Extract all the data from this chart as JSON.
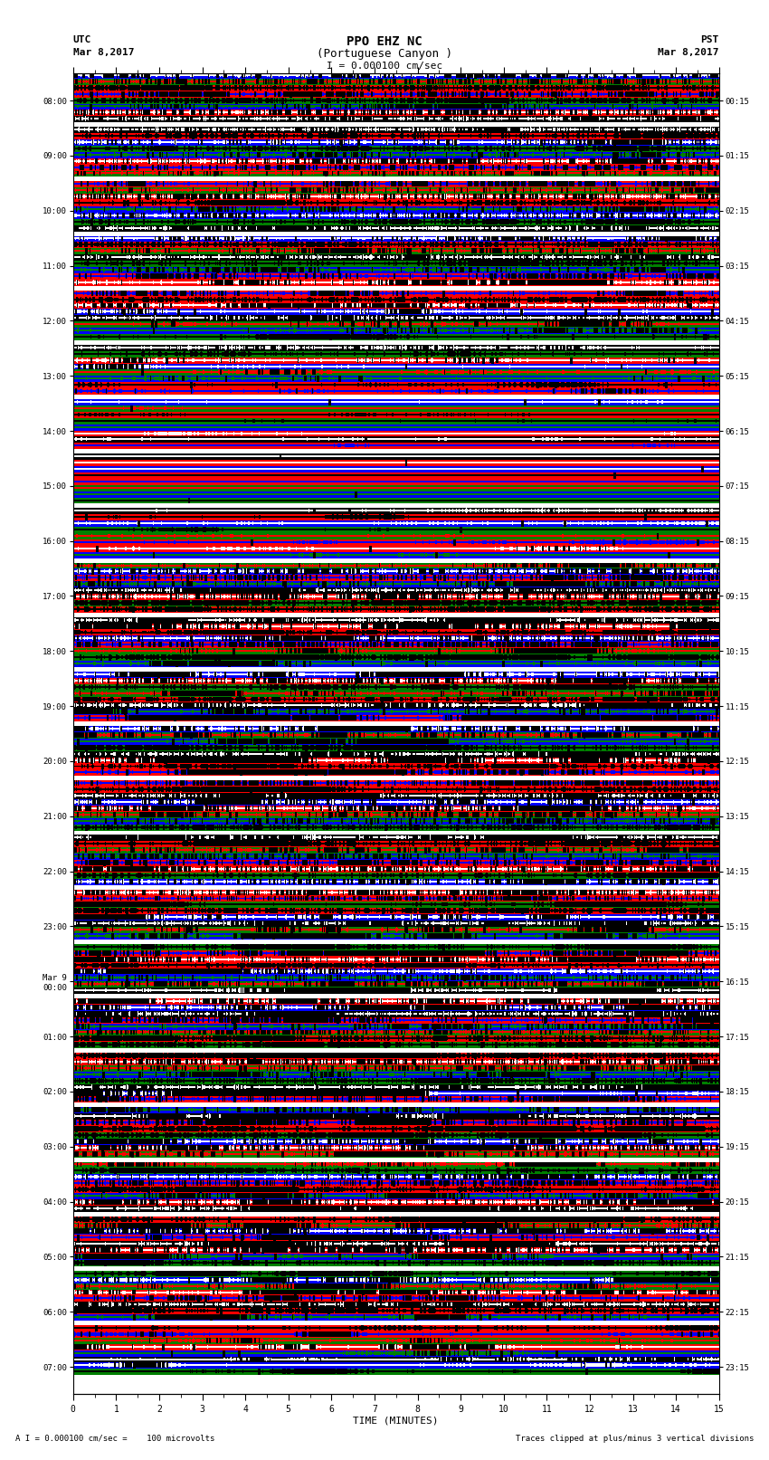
{
  "title_line1": "PPO EHZ NC",
  "title_line2": "(Portuguese Canyon )",
  "scale_text": "I = 0.000100 cm/sec",
  "utc_label": "UTC",
  "utc_date": "Mar 8,2017",
  "pst_label": "PST",
  "pst_date": "Mar 8,2017",
  "bottom_left": "A I = 0.000100 cm/sec =    100 microvolts",
  "bottom_right": "Traces clipped at plus/minus 3 vertical divisions",
  "xlabel": "TIME (MINUTES)",
  "left_times": [
    "08:00",
    "09:00",
    "10:00",
    "11:00",
    "12:00",
    "13:00",
    "14:00",
    "15:00",
    "16:00",
    "17:00",
    "18:00",
    "19:00",
    "20:00",
    "21:00",
    "22:00",
    "23:00",
    "Mar 9\n00:00",
    "01:00",
    "02:00",
    "03:00",
    "04:00",
    "05:00",
    "06:00",
    "07:00"
  ],
  "right_times": [
    "00:15",
    "01:15",
    "02:15",
    "03:15",
    "04:15",
    "05:15",
    "06:15",
    "07:15",
    "08:15",
    "09:15",
    "10:15",
    "11:15",
    "12:15",
    "13:15",
    "14:15",
    "15:15",
    "16:15",
    "17:15",
    "18:15",
    "19:15",
    "20:15",
    "21:15",
    "22:15",
    "23:15"
  ],
  "n_rows": 24,
  "seed": 7777
}
